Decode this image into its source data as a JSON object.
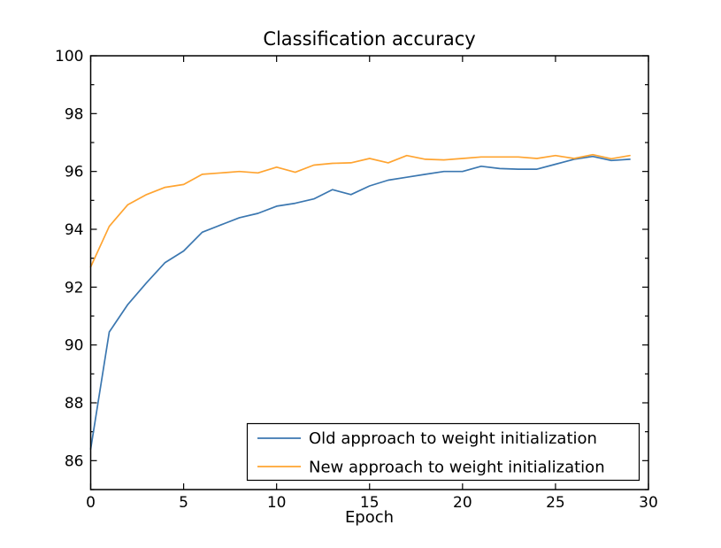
{
  "chart_data": {
    "type": "line",
    "title": "Classification accuracy",
    "xlabel": "Epoch",
    "ylabel": "",
    "xlim": [
      0,
      30
    ],
    "ylim": [
      85,
      100
    ],
    "x_ticks": [
      0,
      5,
      10,
      15,
      20,
      25,
      30
    ],
    "y_ticks": [
      86,
      88,
      90,
      92,
      94,
      96,
      98,
      100
    ],
    "y_minor_ticks": [
      85,
      87,
      89,
      91,
      93,
      95,
      97,
      99
    ],
    "grid": false,
    "legend_position": "lower right",
    "axis_color": "#000000",
    "background_color": "#ffffff",
    "x": [
      0,
      1,
      2,
      3,
      4,
      5,
      6,
      7,
      8,
      9,
      10,
      11,
      12,
      13,
      14,
      15,
      16,
      17,
      18,
      19,
      20,
      21,
      22,
      23,
      24,
      25,
      26,
      27,
      28,
      29
    ],
    "series": [
      {
        "name": "Old approach to weight initialization",
        "color": "#3b77b0",
        "values": [
          86.4,
          90.45,
          91.4,
          92.15,
          92.85,
          93.25,
          93.9,
          94.15,
          94.4,
          94.55,
          94.8,
          94.9,
          95.05,
          95.37,
          95.2,
          95.5,
          95.7,
          95.8,
          95.9,
          96.0,
          96.0,
          96.18,
          96.1,
          96.08,
          96.08,
          96.25,
          96.42,
          96.52,
          96.38,
          96.42
        ]
      },
      {
        "name": "New approach to weight initialization",
        "color": "#ffa431",
        "values": [
          92.7,
          94.1,
          94.85,
          95.2,
          95.45,
          95.55,
          95.9,
          95.95,
          96.0,
          95.95,
          96.15,
          95.97,
          96.22,
          96.28,
          96.3,
          96.45,
          96.3,
          96.55,
          96.42,
          96.4,
          96.45,
          96.5,
          96.5,
          96.5,
          96.45,
          96.55,
          96.45,
          96.58,
          96.44,
          96.55
        ]
      }
    ]
  }
}
